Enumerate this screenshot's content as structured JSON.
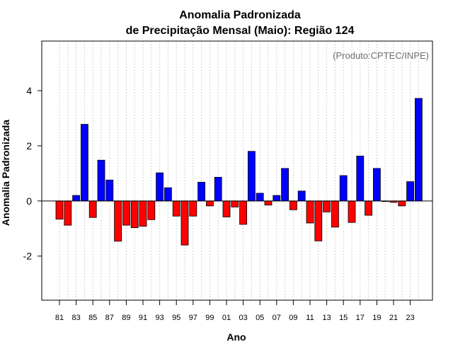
{
  "chart_data": {
    "type": "bar",
    "title_line1": "Anomalia Padronizada",
    "title_line2": "de Precipitação Mensal (Maio): Região 124",
    "xlabel": "Ano",
    "ylabel": "Anomalia Padronizada",
    "annotation": "(Produto:CPTEC/INPE)",
    "ylim": [
      -3.6,
      5.8
    ],
    "yticks": [
      -2,
      0,
      2,
      4
    ],
    "ytick_labels": [
      "-2",
      "0",
      "2",
      "4"
    ],
    "categories": [
      "81",
      "82",
      "83",
      "84",
      "85",
      "86",
      "87",
      "88",
      "89",
      "90",
      "91",
      "92",
      "93",
      "94",
      "95",
      "96",
      "97",
      "98",
      "99",
      "00",
      "01",
      "02",
      "03",
      "04",
      "05",
      "06",
      "07",
      "08",
      "09",
      "10",
      "11",
      "12",
      "13",
      "14",
      "15",
      "16",
      "17",
      "18",
      "19",
      "20",
      "21",
      "22",
      "23",
      "24"
    ],
    "xtick_labels": [
      "81",
      "83",
      "85",
      "87",
      "89",
      "91",
      "93",
      "95",
      "97",
      "99",
      "01",
      "03",
      "05",
      "07",
      "09",
      "11",
      "13",
      "15",
      "17",
      "19",
      "21",
      "23"
    ],
    "values": [
      -0.66,
      -0.88,
      0.2,
      2.78,
      -0.6,
      1.48,
      0.76,
      -1.46,
      -0.88,
      -0.97,
      -0.92,
      -0.68,
      1.02,
      0.48,
      -0.55,
      -1.6,
      -0.55,
      0.68,
      -0.18,
      0.86,
      -0.58,
      -0.22,
      -0.85,
      1.8,
      0.28,
      -0.15,
      0.2,
      1.18,
      -0.32,
      0.36,
      -0.8,
      -1.45,
      -0.4,
      -0.95,
      0.92,
      -0.78,
      1.63,
      -0.52,
      1.18,
      -0.02,
      -0.05,
      -0.18,
      0.7,
      3.72
    ],
    "colors": {
      "positive": "#0000ff",
      "negative": "#ff0000",
      "grid": "#d3d3d3"
    },
    "grid": true
  }
}
